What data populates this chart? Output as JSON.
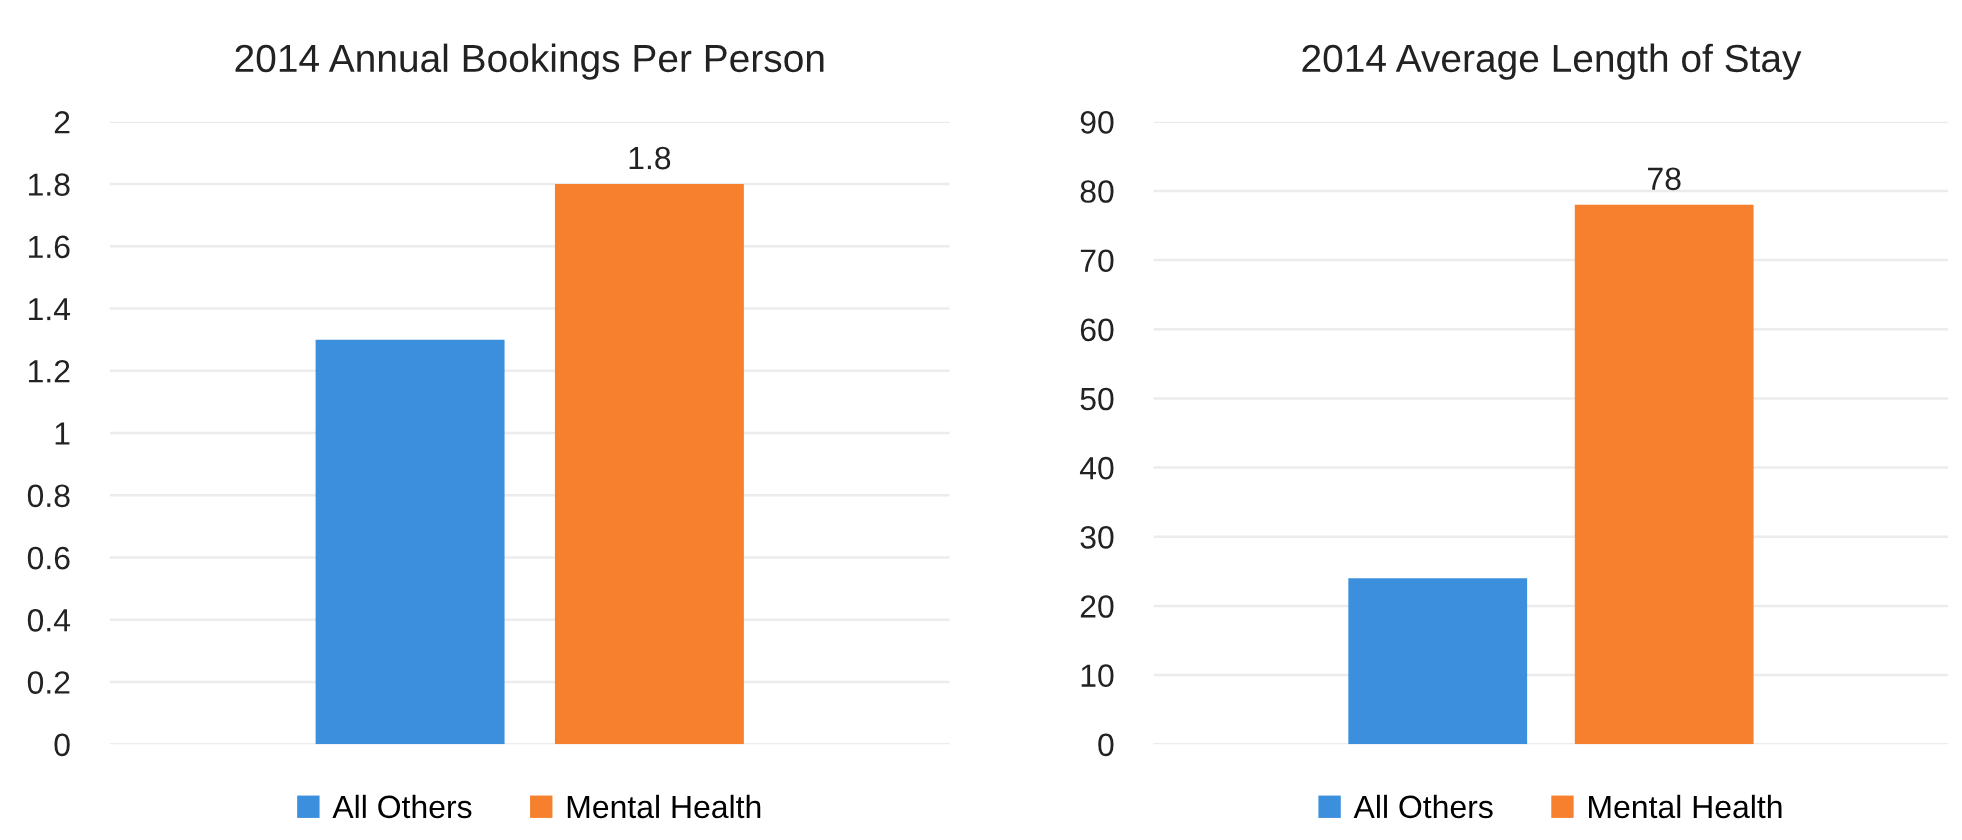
{
  "chart_data": [
    {
      "type": "bar",
      "title": "2014 Annual Bookings Per Person",
      "categories": [
        null
      ],
      "series": [
        {
          "name": "All Others",
          "color": "#3b8fdc",
          "values": [
            1.3
          ]
        },
        {
          "name": "Mental Health",
          "color": "#f6802e",
          "values": [
            1.8
          ],
          "value_labels": [
            "1.8"
          ]
        }
      ],
      "ylim": [
        0,
        2
      ],
      "yticks": [
        0,
        0.2,
        0.4,
        0.6,
        0.8,
        1,
        1.2,
        1.4,
        1.6,
        1.8,
        2
      ],
      "grid": "y",
      "legend": "bottom",
      "tick_labels": "y"
    },
    {
      "type": "bar",
      "title": "2014 Average Length of Stay",
      "categories": [
        null
      ],
      "series": [
        {
          "name": "All Others",
          "color": "#3b8fdc",
          "values": [
            24
          ]
        },
        {
          "name": "Mental Health",
          "color": "#f6802e",
          "values": [
            78
          ],
          "value_labels": [
            "78"
          ]
        }
      ],
      "ylim": [
        0,
        90
      ],
      "yticks": [
        0,
        10,
        20,
        30,
        40,
        50,
        60,
        70,
        80,
        90
      ],
      "grid": "y",
      "legend": "bottom",
      "tick_labels": "y"
    }
  ]
}
